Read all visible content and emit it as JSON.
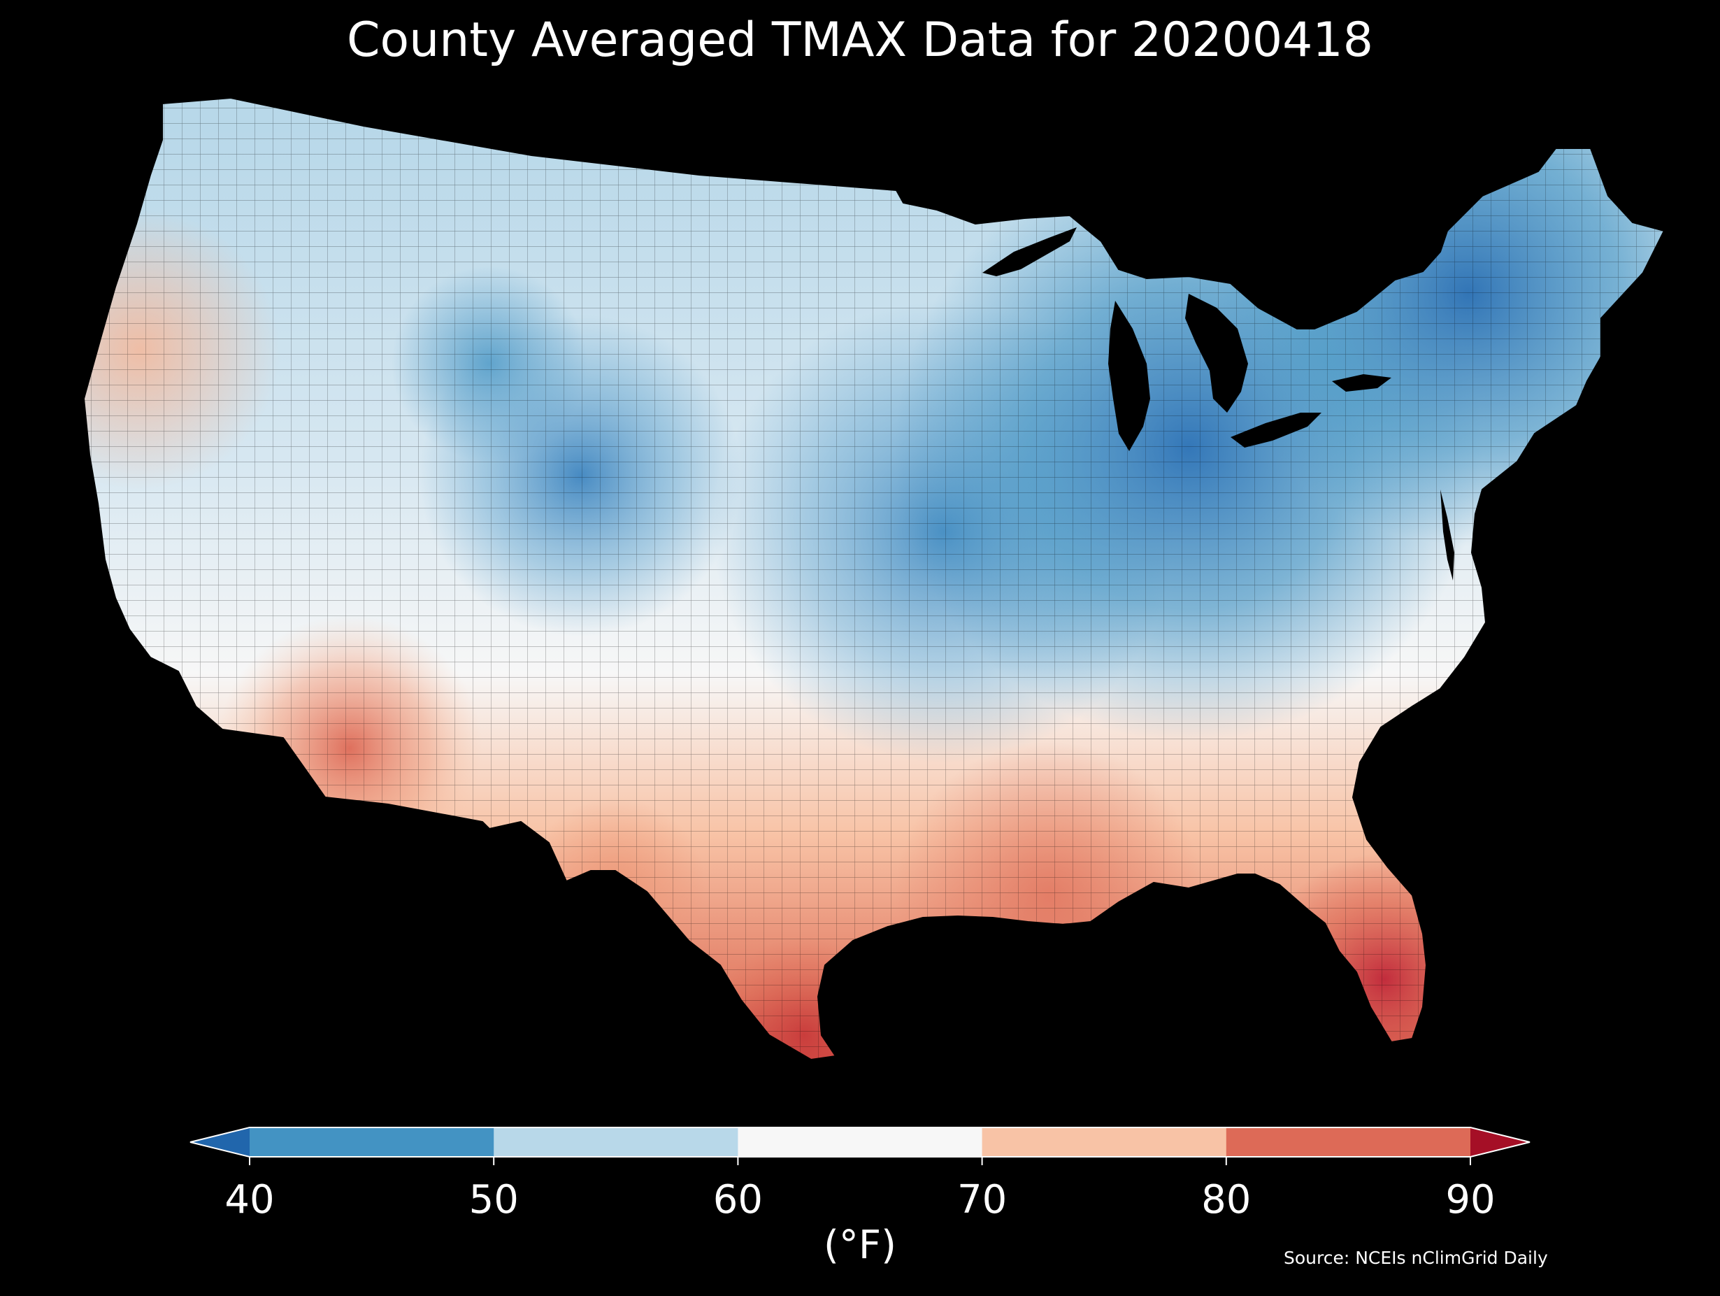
{
  "title": "County Averaged TMAX Data for 20200418",
  "source": "Source: NCEIs nClimGrid Daily",
  "colorbar": {
    "unit_label": "(°F)",
    "ticks": [
      "40",
      "50",
      "60",
      "70",
      "80",
      "90"
    ],
    "bins": [
      {
        "range": "<40",
        "color": "#2166ac"
      },
      {
        "range": "40-50",
        "color": "#4393c3"
      },
      {
        "range": "50-60",
        "color": "#b8d8e9"
      },
      {
        "range": "60-70",
        "color": "#f7f7f7"
      },
      {
        "range": "70-80",
        "color": "#f8c3a6"
      },
      {
        "range": "80-90",
        "color": "#dd6a57"
      },
      {
        "range": ">90",
        "color": "#a50f26"
      }
    ],
    "extend": "both"
  },
  "map": {
    "region": "Contiguous United States",
    "variable": "TMAX",
    "date": "20200418",
    "units": "°F",
    "pattern": "cool in northern Plains, Great Lakes and Northeast; warm in Southwest, Texas and Southeast",
    "min_region": "Maine / Lake Ontario region (<45°F)",
    "max_region": "South Florida and South Texas (~85-90°F)"
  }
}
